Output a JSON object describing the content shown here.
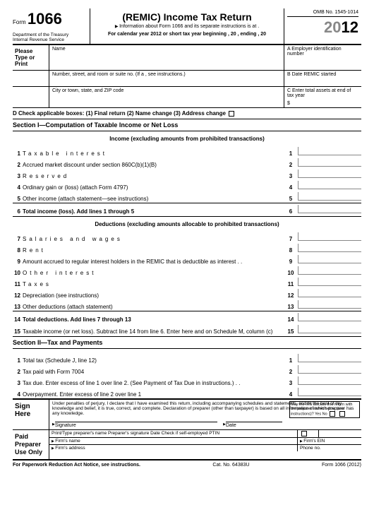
{
  "header": {
    "form_word": "Form",
    "form_number": "1066",
    "title": "(REMIC) Income Tax Return",
    "subtitle": "Information about Form 1066 and its separate instructions is at .",
    "calendar": "For calendar year 2012 or short tax year beginning           , 20  , ending    , 20",
    "dept": "Department of the Treasury\nInternal Revenue Service",
    "omb": "OMB No. 1545-1014",
    "year_prefix": "20",
    "year_suffix": "12"
  },
  "addr": {
    "please": "Please Type or Print",
    "name_lbl": "Name",
    "a_lbl": "A  Employer identification number",
    "street_lbl": "Number, street, and room or suite no. (If a   , see instructions.)",
    "b_lbl": "B  Date REMIC started",
    "city_lbl": "City or town, state, and ZIP code",
    "c_lbl": "C  Enter total assets at end of tax year",
    "c_val": "$"
  },
  "d_row": "D Check applicable boxes:  (1) Final return  (2) Name change  (3) Address change",
  "sec1": "Section I—Computation of Taxable Income or Net Loss",
  "income_hdr": "Income (excluding amounts from prohibited transactions)",
  "lines1": [
    {
      "n": "1",
      "t": "Taxable interest",
      "e": "1",
      "sp": true
    },
    {
      "n": "2",
      "t": "Accrued market discount under section 860C(b)(1)(B)",
      "e": "2"
    },
    {
      "n": "3",
      "t": "Reserved",
      "e": "3",
      "sp": true
    },
    {
      "n": "4",
      "t": "Ordinary gain or (loss) (attach Form 4797)",
      "e": "4"
    },
    {
      "n": "5",
      "t": "Other income (attach statement—see instructions)",
      "e": "5"
    }
  ],
  "total6": {
    "n": "6",
    "t": "Total income (loss). Add lines 1 through 5",
    "e": "6"
  },
  "ded_hdr": "Deductions (excluding amounts allocable to prohibited transactions)",
  "lines2": [
    {
      "n": "7",
      "t": "Salaries and wages",
      "e": "7",
      "sp": true
    },
    {
      "n": "8",
      "t": "Rent",
      "e": "8",
      "sp": true
    },
    {
      "n": "9",
      "t": "Amount accrued to regular interest holders in the REMIC that is deductible as interest  . .",
      "e": "9"
    },
    {
      "n": "10",
      "t": "Other interest",
      "e": "10",
      "sp": true
    },
    {
      "n": "11",
      "t": "Taxes",
      "e": "11",
      "sp": true
    },
    {
      "n": "12",
      "t": "Depreciation (see instructions)",
      "e": "12"
    },
    {
      "n": "13",
      "t": "Other deductions (attach statement)",
      "e": "13"
    }
  ],
  "total14": {
    "n": "14",
    "t": "Total deductions. Add lines 7 through 13",
    "e": "14"
  },
  "line15": {
    "n": "15",
    "t": "Taxable income (or net loss). Subtract line 14 from line 6. Enter here and on Schedule M, column (c)",
    "e": "15"
  },
  "sec2": "Section II—Tax and Payments",
  "lines3": [
    {
      "n": "1",
      "t": "Total tax (Schedule J, line 12)",
      "e": "1"
    },
    {
      "n": "2",
      "t": "Tax paid with Form 7004",
      "e": "2"
    },
    {
      "n": "3",
      "t": "Tax due. Enter excess of line 1 over line 2. (See Payment of Tax Due in instructions.)  . .",
      "e": "3"
    },
    {
      "n": "4",
      "t": "Overpayment. Enter excess of line 2 over line 1",
      "e": "4"
    }
  ],
  "sign": {
    "lbl": "Sign Here",
    "perjury": "Under penalties of perjury, I declare that I have examined this return, including accompanying schedules and statements, and to the best of my knowledge and belief, it is true, correct, and complete. Declaration of preparer (other than taxpayer) is based on all information of which preparer has any knowledge.",
    "sig": "Signature",
    "date": "Date",
    "irs_box": "May the IRS discuss this return with the preparer shown below (see instructions)?  Yes   No"
  },
  "prep": {
    "lbl": "Paid Preparer Use Only",
    "r1": "Print/Type preparer's name   Preparer's signature   Date       Check        if self-employed    PTIN",
    "r2a": "Firm's name",
    "r2b": "Firm's EIN",
    "r3a": "Firm's address",
    "r3b": "Phone no."
  },
  "footer": {
    "left": "For Paperwork Reduction Act Notice, see instructions.",
    "mid": "Cat. No. 64383U",
    "right": "Form 1066 (2012)"
  }
}
